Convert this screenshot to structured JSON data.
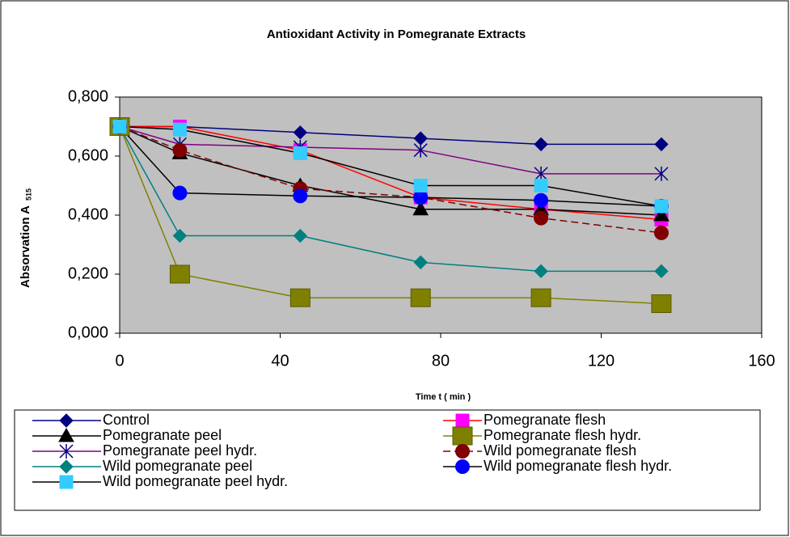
{
  "chart_data": {
    "type": "line",
    "title": "Antioxidant Activity in Pomegranate Extracts",
    "x_label": "Time t ( min )",
    "y_label": "Absorvation A",
    "y_label_subscript": "515",
    "x": [
      0,
      15,
      45,
      75,
      105,
      135
    ],
    "xlim": [
      0,
      160
    ],
    "xticks": [
      0,
      40,
      80,
      120,
      160
    ],
    "ylim": [
      0,
      0.8
    ],
    "yticks": [
      {
        "value": 0,
        "label": "0,000"
      },
      {
        "value": 0.2,
        "label": "0,200"
      },
      {
        "value": 0.4,
        "label": "0,400"
      },
      {
        "value": 0.6,
        "label": "0,600"
      },
      {
        "value": 0.8,
        "label": "0,800"
      }
    ],
    "grid": false,
    "plot_background": "#c0c0c0",
    "series": [
      {
        "name": "Control",
        "color": "#000080",
        "marker_color": "#000080",
        "marker": "diamond",
        "dash": false,
        "values": [
          0.7,
          0.7,
          0.68,
          0.66,
          0.64,
          0.64
        ]
      },
      {
        "name": "Pomegranate flesh",
        "color": "#ff0000",
        "marker_color": "#ff00ff",
        "marker": "square",
        "dash": false,
        "values": [
          0.7,
          0.7,
          0.62,
          0.46,
          0.42,
          0.385
        ]
      },
      {
        "name": "Pomegranate peel",
        "color": "#000000",
        "marker_color": "#000000",
        "marker": "triangle",
        "dash": false,
        "values": [
          0.7,
          0.61,
          0.5,
          0.42,
          0.42,
          0.4
        ]
      },
      {
        "name": "Pomegranate flesh hydr.",
        "color": "#808000",
        "marker_color": "#808000",
        "marker": "bigsquare",
        "dash": false,
        "values": [
          0.7,
          0.2,
          0.12,
          0.12,
          0.12,
          0.1
        ]
      },
      {
        "name": "Pomegranate peel hydr.",
        "color": "#800080",
        "marker_color": "#000080",
        "marker": "star",
        "dash": false,
        "values": [
          0.7,
          0.64,
          0.63,
          0.62,
          0.54,
          0.54
        ]
      },
      {
        "name": "Wild pomegranate flesh",
        "color": "#800000",
        "marker_color": "#800000",
        "marker": "circle",
        "dash": true,
        "values": [
          0.7,
          0.62,
          0.49,
          0.46,
          0.39,
          0.34
        ]
      },
      {
        "name": "Wild pomegranate peel",
        "color": "#008080",
        "marker_color": "#008080",
        "marker": "diamond",
        "dash": false,
        "values": [
          0.7,
          0.33,
          0.33,
          0.24,
          0.21,
          0.21
        ]
      },
      {
        "name": "Wild pomegranate flesh hydr.",
        "color": "#000000",
        "marker_color": "#0000ff",
        "marker": "circle",
        "dash": false,
        "values": [
          0.7,
          0.475,
          0.465,
          0.46,
          0.45,
          0.43
        ]
      },
      {
        "name": "Wild pomegranate peel hydr.",
        "color": "#000000",
        "marker_color": "#33ccff",
        "marker": "square",
        "dash": false,
        "values": [
          0.7,
          0.69,
          0.61,
          0.5,
          0.5,
          0.43
        ]
      }
    ]
  }
}
